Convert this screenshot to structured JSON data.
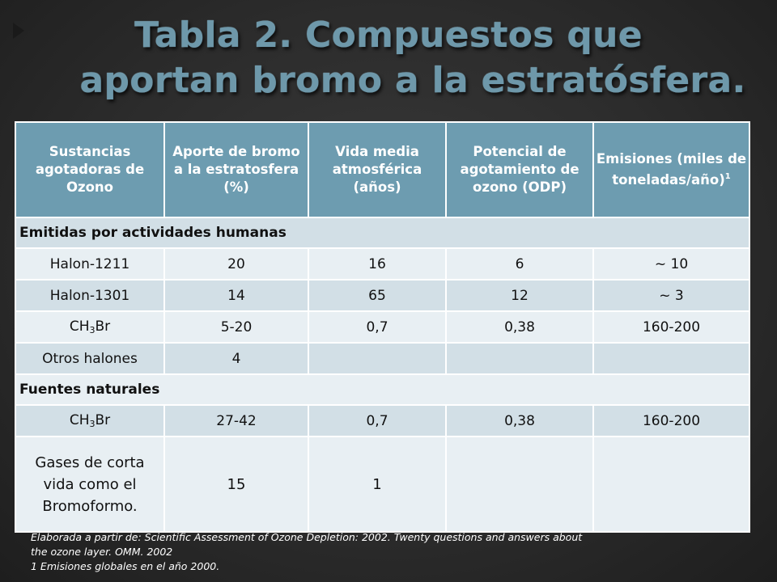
{
  "title": {
    "line1": "Tabla 2. Compuestos que",
    "line2": "aportan bromo a la estratósfera."
  },
  "table": {
    "headers": [
      "Sustancias agotadoras de Ozono",
      "Aporte de bromo a la estratosfera (%)",
      "Vida media atmosférica (años)",
      "Potencial de agotamiento de ozono (ODP)",
      "Emisiones (miles de toneladas/año)"
    ],
    "header_sup": "1",
    "sections": [
      {
        "label": "Emitidas por actividades humanas",
        "rows": [
          {
            "name": "Halon-1211",
            "bromine": "20",
            "lifetime": "16",
            "odp": "6",
            "emissions": "~ 10"
          },
          {
            "name": "Halon-1301",
            "bromine": "14",
            "lifetime": "65",
            "odp": "12",
            "emissions": "~ 3"
          },
          {
            "name_base": "CH",
            "name_sub": "3",
            "name_tail": "Br",
            "bromine": "5-20",
            "lifetime": "0,7",
            "odp": "0,38",
            "emissions": "160-200"
          },
          {
            "name": "Otros halones",
            "bromine": "4",
            "lifetime": "",
            "odp": "",
            "emissions": ""
          }
        ]
      },
      {
        "label": "Fuentes naturales",
        "rows": [
          {
            "name_base": "CH",
            "name_sub": "3",
            "name_tail": "Br",
            "bromine": "27-42",
            "lifetime": "0,7",
            "odp": "0,38",
            "emissions": "160-200"
          },
          {
            "name": "Gases de corta vida como el Bromoformo.",
            "bromine": "15",
            "lifetime": "1",
            "odp": "",
            "emissions": ""
          }
        ]
      }
    ]
  },
  "footnote": {
    "line1": "Elaborada a partir de: Scientific Assessment of Ozone Depletion: 2002. Twenty questions and answers about",
    "line2": "the ozone layer. OMM. 2002",
    "line3": "1 Emisiones globales en el año 2000."
  },
  "colors": {
    "title": "#6e98aa",
    "header_bg": "#6d9cb0",
    "row_dark": "#d2dfe6",
    "row_light": "#e8eff3",
    "background": "#2c2c2c"
  },
  "icons": {
    "nav_arrow": "play-arrow-icon"
  }
}
